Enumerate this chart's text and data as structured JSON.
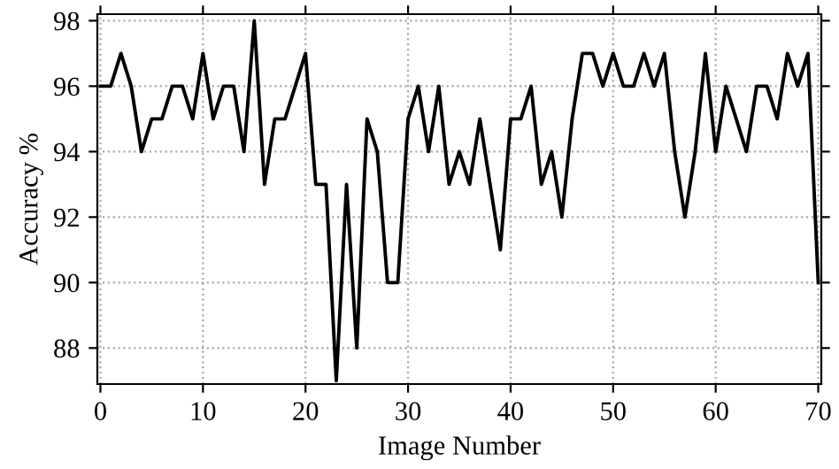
{
  "chart_data": {
    "type": "line",
    "xlabel": "Image Number",
    "ylabel": "Accuracy %",
    "x": [
      0,
      1,
      2,
      3,
      4,
      5,
      6,
      7,
      8,
      9,
      10,
      11,
      12,
      13,
      14,
      15,
      16,
      17,
      18,
      19,
      20,
      21,
      22,
      23,
      24,
      25,
      26,
      27,
      28,
      29,
      30,
      31,
      32,
      33,
      34,
      35,
      36,
      37,
      38,
      39,
      40,
      41,
      42,
      43,
      44,
      45,
      46,
      47,
      48,
      49,
      50,
      51,
      52,
      53,
      54,
      55,
      56,
      57,
      58,
      59,
      60,
      61,
      62,
      63,
      64,
      65,
      66,
      67,
      68,
      69,
      70
    ],
    "series": [
      {
        "color": "#000000",
        "values": [
          96,
          96,
          97,
          96,
          94,
          95,
          95,
          96,
          96,
          95,
          97,
          95,
          96,
          96,
          94,
          98,
          93,
          95,
          95,
          96,
          97,
          93,
          93,
          87,
          93,
          88,
          95,
          94,
          90,
          90,
          95,
          96,
          94,
          96,
          93,
          94,
          93,
          95,
          93,
          91,
          95,
          95,
          96,
          93,
          94,
          92,
          95,
          97,
          97,
          96,
          97,
          96,
          96,
          97,
          96,
          97,
          94,
          92,
          94,
          97,
          94,
          96,
          95,
          94,
          96,
          96,
          95,
          97,
          96,
          97,
          90
        ]
      }
    ],
    "xlim": [
      -0.3,
      70.3
    ],
    "ylim": [
      86.9,
      98.2
    ],
    "xticks": [
      0,
      10,
      20,
      30,
      40,
      50,
      60,
      70
    ],
    "yticks": [
      88,
      90,
      92,
      94,
      96,
      98
    ],
    "grid": true,
    "marker": "none",
    "line_style": "solid"
  }
}
